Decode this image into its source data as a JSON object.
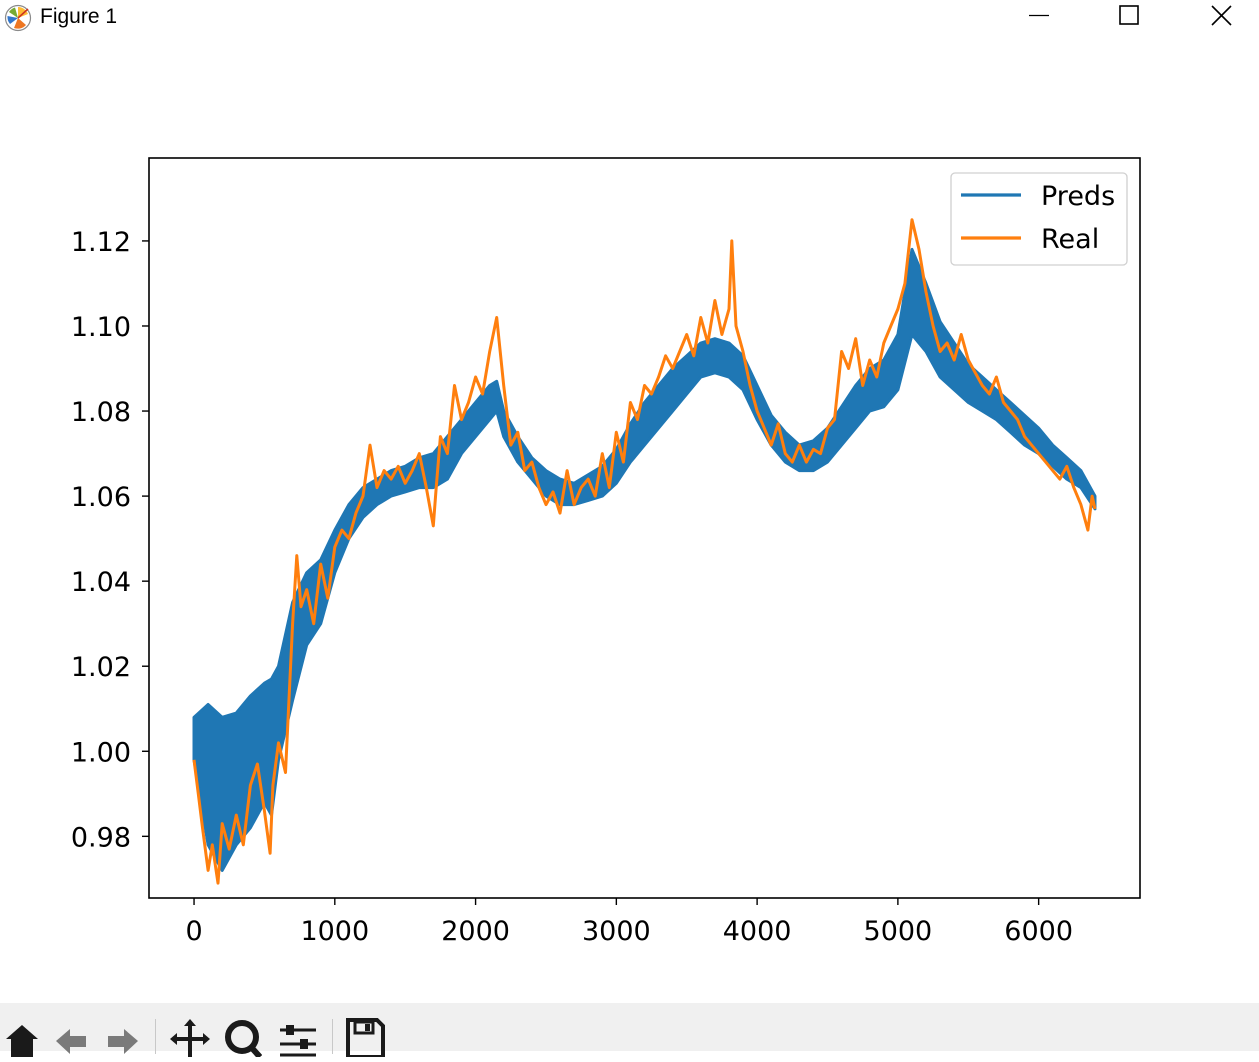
{
  "window": {
    "title": "Figure 1",
    "icon": "matplotlib-icon",
    "controls": [
      "minimize-icon",
      "maximize-icon",
      "close-icon"
    ]
  },
  "toolbar": {
    "buttons": [
      "home-icon",
      "back-icon",
      "forward-icon",
      "pan-icon",
      "zoom-icon",
      "configure-subplots-icon",
      "save-icon"
    ]
  },
  "chart_data": {
    "type": "line",
    "xlim": [
      -320,
      6720
    ],
    "ylim": [
      0.9655,
      1.1395
    ],
    "xticks": [
      0,
      1000,
      2000,
      3000,
      4000,
      5000,
      6000
    ],
    "xtick_labels": [
      "0",
      "1000",
      "2000",
      "3000",
      "4000",
      "5000",
      "6000"
    ],
    "yticks": [
      0.98,
      1.0,
      1.02,
      1.04,
      1.06,
      1.08,
      1.1,
      1.12
    ],
    "ytick_labels": [
      "0.98",
      "1.00",
      "1.02",
      "1.04",
      "1.06",
      "1.08",
      "1.10",
      "1.12"
    ],
    "legend": {
      "position": "upper right"
    },
    "colors": {
      "Preds": "#1f77b4",
      "Real": "#ff7f0e"
    },
    "series": [
      {
        "name": "Preds",
        "x": [
          0,
          100,
          200,
          300,
          400,
          500,
          550,
          600,
          700,
          800,
          900,
          1000,
          1100,
          1200,
          1300,
          1400,
          1500,
          1600,
          1700,
          1800,
          1900,
          2000,
          2100,
          2150,
          2200,
          2300,
          2400,
          2500,
          2600,
          2700,
          2800,
          2900,
          3000,
          3100,
          3200,
          3300,
          3400,
          3500,
          3600,
          3700,
          3800,
          3900,
          4000,
          4100,
          4200,
          4300,
          4400,
          4500,
          4600,
          4700,
          4800,
          4900,
          5000,
          5100,
          5200,
          5300,
          5400,
          5500,
          5600,
          5700,
          5800,
          5900,
          6000,
          6100,
          6200,
          6300,
          6400
        ],
        "low": [
          0.998,
          0.978,
          0.972,
          0.978,
          0.982,
          0.988,
          0.985,
          0.998,
          1.012,
          1.025,
          1.03,
          1.042,
          1.05,
          1.055,
          1.058,
          1.06,
          1.061,
          1.062,
          1.062,
          1.064,
          1.07,
          1.074,
          1.078,
          1.08,
          1.074,
          1.068,
          1.064,
          1.06,
          1.058,
          1.058,
          1.059,
          1.06,
          1.063,
          1.068,
          1.072,
          1.076,
          1.08,
          1.084,
          1.088,
          1.089,
          1.088,
          1.085,
          1.078,
          1.072,
          1.068,
          1.066,
          1.066,
          1.068,
          1.072,
          1.076,
          1.08,
          1.081,
          1.085,
          1.098,
          1.094,
          1.088,
          1.085,
          1.082,
          1.08,
          1.078,
          1.075,
          1.072,
          1.07,
          1.067,
          1.064,
          1.062,
          1.057
        ],
        "high": [
          1.008,
          1.011,
          1.008,
          1.009,
          1.013,
          1.016,
          1.017,
          1.02,
          1.035,
          1.042,
          1.045,
          1.052,
          1.058,
          1.062,
          1.064,
          1.066,
          1.067,
          1.069,
          1.07,
          1.074,
          1.078,
          1.082,
          1.086,
          1.087,
          1.08,
          1.074,
          1.069,
          1.066,
          1.064,
          1.063,
          1.065,
          1.067,
          1.071,
          1.077,
          1.082,
          1.086,
          1.09,
          1.093,
          1.096,
          1.097,
          1.096,
          1.093,
          1.086,
          1.079,
          1.075,
          1.072,
          1.073,
          1.076,
          1.081,
          1.086,
          1.09,
          1.092,
          1.098,
          1.118,
          1.11,
          1.101,
          1.096,
          1.091,
          1.088,
          1.085,
          1.082,
          1.079,
          1.076,
          1.072,
          1.069,
          1.066,
          1.06
        ]
      },
      {
        "name": "Real",
        "x": [
          0,
          30,
          60,
          100,
          130,
          170,
          200,
          250,
          300,
          350,
          400,
          450,
          500,
          540,
          560,
          600,
          650,
          700,
          730,
          760,
          800,
          850,
          900,
          950,
          1000,
          1050,
          1100,
          1150,
          1200,
          1250,
          1300,
          1350,
          1400,
          1450,
          1500,
          1550,
          1600,
          1650,
          1700,
          1720,
          1750,
          1800,
          1850,
          1900,
          1950,
          2000,
          2050,
          2100,
          2150,
          2200,
          2250,
          2300,
          2350,
          2400,
          2450,
          2500,
          2550,
          2600,
          2650,
          2700,
          2750,
          2800,
          2850,
          2900,
          2950,
          3000,
          3050,
          3100,
          3150,
          3200,
          3250,
          3300,
          3350,
          3400,
          3450,
          3500,
          3550,
          3600,
          3650,
          3700,
          3750,
          3800,
          3820,
          3850,
          3900,
          3950,
          4000,
          4050,
          4100,
          4150,
          4200,
          4250,
          4300,
          4350,
          4400,
          4450,
          4500,
          4550,
          4600,
          4650,
          4700,
          4750,
          4800,
          4850,
          4900,
          4950,
          5000,
          5050,
          5100,
          5150,
          5200,
          5250,
          5300,
          5350,
          5400,
          5450,
          5500,
          5550,
          5600,
          5650,
          5700,
          5750,
          5800,
          5850,
          5900,
          5950,
          6000,
          6050,
          6100,
          6150,
          6200,
          6250,
          6300,
          6350,
          6380,
          6400
        ],
        "y": [
          0.998,
          0.99,
          0.982,
          0.972,
          0.978,
          0.969,
          0.983,
          0.977,
          0.985,
          0.978,
          0.992,
          0.997,
          0.986,
          0.976,
          0.992,
          1.002,
          0.995,
          1.03,
          1.046,
          1.034,
          1.038,
          1.03,
          1.044,
          1.036,
          1.048,
          1.052,
          1.05,
          1.056,
          1.06,
          1.072,
          1.062,
          1.066,
          1.064,
          1.067,
          1.063,
          1.066,
          1.07,
          1.062,
          1.053,
          1.062,
          1.074,
          1.07,
          1.086,
          1.078,
          1.082,
          1.088,
          1.084,
          1.094,
          1.102,
          1.086,
          1.072,
          1.075,
          1.066,
          1.068,
          1.062,
          1.058,
          1.061,
          1.056,
          1.066,
          1.058,
          1.062,
          1.064,
          1.06,
          1.07,
          1.062,
          1.075,
          1.068,
          1.082,
          1.078,
          1.086,
          1.084,
          1.088,
          1.093,
          1.09,
          1.094,
          1.098,
          1.093,
          1.102,
          1.096,
          1.106,
          1.098,
          1.104,
          1.12,
          1.1,
          1.094,
          1.086,
          1.08,
          1.076,
          1.072,
          1.077,
          1.07,
          1.068,
          1.072,
          1.068,
          1.071,
          1.07,
          1.076,
          1.078,
          1.094,
          1.09,
          1.097,
          1.086,
          1.092,
          1.088,
          1.096,
          1.1,
          1.104,
          1.11,
          1.125,
          1.118,
          1.108,
          1.1,
          1.094,
          1.096,
          1.092,
          1.098,
          1.092,
          1.089,
          1.086,
          1.084,
          1.088,
          1.082,
          1.08,
          1.078,
          1.074,
          1.072,
          1.07,
          1.068,
          1.066,
          1.064,
          1.067,
          1.062,
          1.058,
          1.052,
          1.06,
          1.057
        ]
      }
    ]
  }
}
